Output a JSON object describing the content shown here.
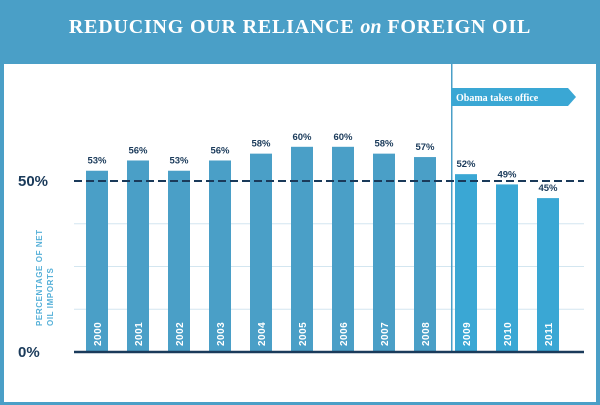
{
  "header": {
    "title_part1": "REDUCING OUR RELIANCE",
    "title_em": "on",
    "title_part2": "FOREIGN OIL"
  },
  "chart_data": {
    "type": "bar",
    "title": "REDUCING OUR RELIANCE on FOREIGN OIL",
    "ylabel": "PERCENTAGE OF NET OIL IMPORTS",
    "xlabel": "",
    "categories": [
      "2000",
      "2001",
      "2002",
      "2003",
      "2004",
      "2005",
      "2006",
      "2007",
      "2008",
      "2009",
      "2010",
      "2011"
    ],
    "values": [
      53,
      56,
      53,
      56,
      58,
      60,
      60,
      58,
      57,
      52,
      49,
      45
    ],
    "value_labels": [
      "53%",
      "56%",
      "53%",
      "56%",
      "58%",
      "60%",
      "60%",
      "58%",
      "57%",
      "52%",
      "49%",
      "45%"
    ],
    "ylim": [
      0,
      60
    ],
    "yticks": [
      {
        "value": 0,
        "label": "0%"
      },
      {
        "value": 50,
        "label": "50%"
      }
    ],
    "reference_line": 50,
    "annotation": {
      "text": "Obama takes office",
      "at_category": "2009"
    },
    "colors": {
      "bar": "#4a9fc7",
      "bar_post": "#3aa7d4",
      "frame": "#4a9fc7",
      "label": "#1a3a5a"
    }
  }
}
